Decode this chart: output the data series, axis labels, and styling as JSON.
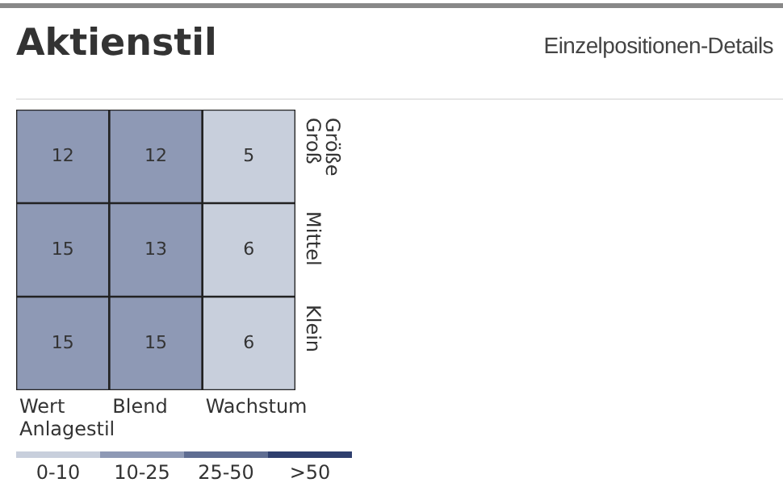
{
  "chart_data": {
    "type": "heatmap",
    "title": "Aktienstil",
    "subtitle": "Einzelpositionen-Details",
    "xlabel": "Anlagestil",
    "ylabel": "Größe",
    "categories": [
      "Wert",
      "Blend",
      "Wachstum"
    ],
    "y_categories": [
      "Groß",
      "Mittel",
      "Klein"
    ],
    "cells": [
      [
        12,
        12,
        5
      ],
      [
        15,
        13,
        6
      ],
      [
        15,
        15,
        6
      ]
    ],
    "colors": [
      "#8e99b5",
      "#8e99b5",
      "#c8cfdc",
      "#8e99b5",
      "#8e99b5",
      "#c8cfdc",
      "#8e99b5",
      "#8e99b5",
      "#c8cfdc"
    ],
    "annotations": [
      "0-10",
      "10-25",
      "25-50",
      ">50"
    ],
    "data_labels": true
  }
}
